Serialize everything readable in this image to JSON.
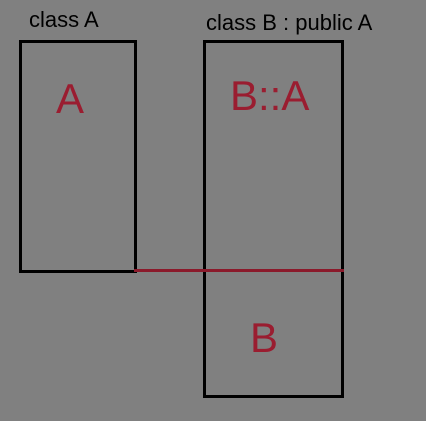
{
  "diagram": {
    "class_a": {
      "caption": "class A",
      "member_label": "A"
    },
    "class_b": {
      "caption": "class B : public A",
      "inherited_label": "B::A",
      "own_label": "B"
    },
    "colors": {
      "background": "#808080",
      "outline": "#000000",
      "accent": "#9a1d30"
    }
  }
}
